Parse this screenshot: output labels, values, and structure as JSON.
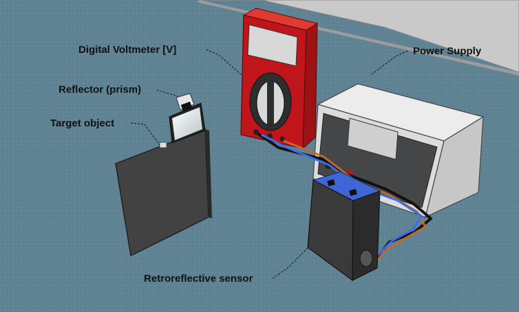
{
  "labels": {
    "voltmeter": "Digital Voltmeter [V]",
    "power_supply": "Power Supply",
    "reflector": "Reflector (prism)",
    "target": "Target object",
    "sensor": "Retroreflective sensor"
  },
  "colors": {
    "floor": "#5f8393",
    "meter_body": "#c0161b",
    "psu_case": "#d6d6d6",
    "sensor_body": "#3a3a3a",
    "target_plate": "#3f3f3f",
    "wire_blue": "#3b6df0",
    "wire_orange": "#c0692b",
    "wire_black": "#111111"
  }
}
